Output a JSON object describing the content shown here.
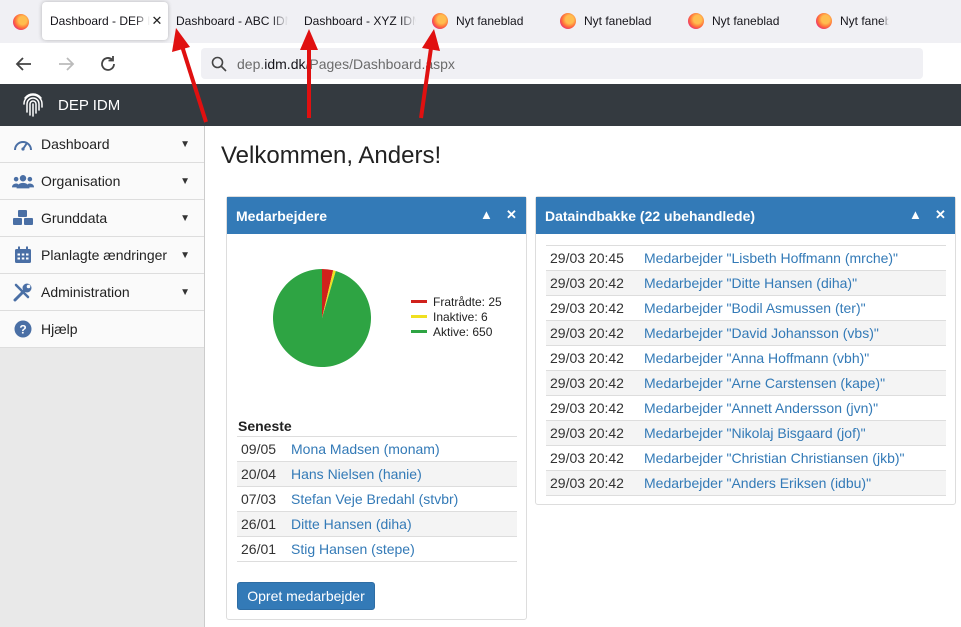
{
  "browser": {
    "tabs": [
      {
        "label": "",
        "kind": "icon-only"
      },
      {
        "label": "Dashboard - DEP IDM",
        "kind": "active"
      },
      {
        "label": "Dashboard - ABC IDM",
        "kind": "plain"
      },
      {
        "label": "Dashboard - XYZ IDM",
        "kind": "plain"
      },
      {
        "label": "Nyt faneblad",
        "kind": "newtab"
      },
      {
        "label": "Nyt faneblad",
        "kind": "newtab"
      },
      {
        "label": "Nyt faneblad",
        "kind": "newtab"
      },
      {
        "label": "Nyt faneblad",
        "kind": "newtab"
      }
    ],
    "close_glyph": "✕",
    "url_prefix": "dep.",
    "url_domain": "idm.dk",
    "url_path": "/Pages/Dashboard.aspx"
  },
  "app": {
    "brand": "DEP IDM"
  },
  "sidebar": {
    "items": [
      {
        "label": "Dashboard",
        "icon": "gauge-icon",
        "has_caret": true
      },
      {
        "label": "Organisation",
        "icon": "users-icon",
        "has_caret": true
      },
      {
        "label": "Grunddata",
        "icon": "cubes-icon",
        "has_caret": true
      },
      {
        "label": "Planlagte ændringer",
        "icon": "calendar-icon",
        "has_caret": true
      },
      {
        "label": "Administration",
        "icon": "tools-icon",
        "has_caret": true
      },
      {
        "label": "Hjælp",
        "icon": "question-icon",
        "has_caret": false
      }
    ],
    "caret_glyph": "▼"
  },
  "main": {
    "title": "Velkommen, Anders!",
    "employees_panel": {
      "title": "Medarbejdere",
      "collapse_glyph": "▲",
      "close_glyph": "✕",
      "chart_data": {
        "type": "pie",
        "categories": [
          "Fratrådte",
          "Inaktive",
          "Aktive"
        ],
        "values": [
          25,
          6,
          650
        ],
        "colors": [
          "#d0211c",
          "#f0e020",
          "#2ea443"
        ],
        "legend_position": "right"
      },
      "legend": [
        {
          "label": "Fratrådte: 25",
          "color": "#d0211c"
        },
        {
          "label": "Inaktive: 6",
          "color": "#f0e020"
        },
        {
          "label": "Aktive: 650",
          "color": "#2ea443"
        }
      ],
      "recent_heading": "Seneste",
      "recent": [
        {
          "date": "09/05",
          "name": "Mona Madsen (monam)"
        },
        {
          "date": "20/04",
          "name": "Hans Nielsen (hanie)"
        },
        {
          "date": "07/03",
          "name": "Stefan Veje Bredahl (stvbr)"
        },
        {
          "date": "26/01",
          "name": "Ditte Hansen (diha)"
        },
        {
          "date": "26/01",
          "name": "Stig Hansen (stepe)"
        }
      ],
      "create_button": "Opret medarbejder"
    },
    "inbox_panel": {
      "title": "Dataindbakke (22 ubehandlede)",
      "collapse_glyph": "▲",
      "close_glyph": "✕",
      "rows": [
        {
          "time": "29/03 20:45",
          "text": "Medarbejder \"Lisbeth Hoffmann (mrche)\""
        },
        {
          "time": "29/03 20:42",
          "text": "Medarbejder \"Ditte Hansen (diha)\""
        },
        {
          "time": "29/03 20:42",
          "text": "Medarbejder \"Bodil Asmussen (ter)\""
        },
        {
          "time": "29/03 20:42",
          "text": "Medarbejder \"David Johansson (vbs)\""
        },
        {
          "time": "29/03 20:42",
          "text": "Medarbejder \"Anna Hoffmann (vbh)\""
        },
        {
          "time": "29/03 20:42",
          "text": "Medarbejder \"Arne Carstensen (kape)\""
        },
        {
          "time": "29/03 20:42",
          "text": "Medarbejder \"Annett Andersson (jvn)\""
        },
        {
          "time": "29/03 20:42",
          "text": "Medarbejder \"Nikolaj Bisgaard (jof)\""
        },
        {
          "time": "29/03 20:42",
          "text": "Medarbejder \"Christian Christiansen (jkb)\""
        },
        {
          "time": "29/03 20:42",
          "text": "Medarbejder \"Anders Eriksen (idbu)\""
        }
      ]
    }
  },
  "colors": {
    "app_header": "#343a40",
    "panel_header": "#337ab7",
    "link": "#337ab7",
    "annotation_arrow": "#e01010"
  }
}
